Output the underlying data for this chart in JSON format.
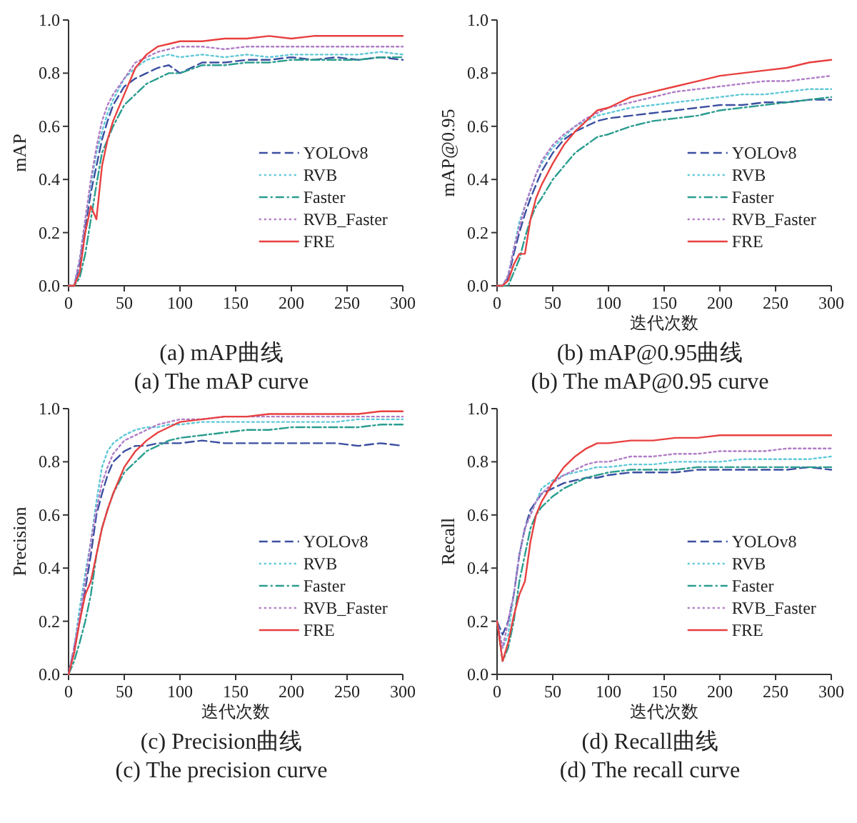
{
  "chart_data": [
    {
      "type": "line",
      "title": "(a) mAP曲线",
      "subtitle": "(a) The mAP curve",
      "ylabel": "mAP",
      "legend": "right",
      "grid": false,
      "x": [
        0,
        5,
        10,
        15,
        20,
        25,
        30,
        35,
        40,
        50,
        60,
        70,
        80,
        90,
        100,
        120,
        140,
        160,
        180,
        200,
        220,
        240,
        260,
        280,
        300
      ],
      "xlim": [
        0,
        300
      ],
      "xticks": [
        0,
        50,
        100,
        150,
        200,
        250,
        300
      ],
      "ylim": [
        0,
        1
      ],
      "yticks": [
        {
          "value": 0,
          "label": "0.0"
        },
        {
          "value": 0.2,
          "label": "0.2"
        },
        {
          "value": 0.4,
          "label": "0.4"
        },
        {
          "value": 0.6,
          "label": "0.6"
        },
        {
          "value": 0.8,
          "label": "0.8"
        },
        {
          "value": 1,
          "label": "1.0"
        }
      ],
      "series": [
        {
          "name": "YOLOv8",
          "color": "#3b4fa0",
          "line_style": "dashed",
          "values": [
            0,
            0,
            0.08,
            0.22,
            0.35,
            0.45,
            0.55,
            0.62,
            0.68,
            0.75,
            0.78,
            0.8,
            0.82,
            0.83,
            0.8,
            0.84,
            0.84,
            0.85,
            0.85,
            0.86,
            0.85,
            0.86,
            0.85,
            0.86,
            0.85
          ]
        },
        {
          "name": "RVB",
          "color": "#5fc8d8",
          "line_style": "dotted",
          "values": [
            0,
            0,
            0.1,
            0.25,
            0.38,
            0.5,
            0.58,
            0.65,
            0.7,
            0.78,
            0.82,
            0.85,
            0.86,
            0.87,
            0.86,
            0.87,
            0.86,
            0.87,
            0.86,
            0.87,
            0.87,
            0.87,
            0.87,
            0.88,
            0.87
          ]
        },
        {
          "name": "Faster",
          "color": "#2a9d8f",
          "line_style": "dashdot",
          "values": [
            0,
            0,
            0.03,
            0.12,
            0.25,
            0.38,
            0.5,
            0.55,
            0.6,
            0.68,
            0.72,
            0.76,
            0.78,
            0.8,
            0.8,
            0.83,
            0.83,
            0.84,
            0.84,
            0.85,
            0.85,
            0.85,
            0.85,
            0.86,
            0.86
          ]
        },
        {
          "name": "RVB_Faster",
          "color": "#b07cc6",
          "line_style": "dotted",
          "values": [
            0,
            0,
            0.1,
            0.25,
            0.4,
            0.52,
            0.62,
            0.68,
            0.72,
            0.78,
            0.84,
            0.86,
            0.88,
            0.89,
            0.9,
            0.9,
            0.89,
            0.9,
            0.9,
            0.9,
            0.9,
            0.9,
            0.9,
            0.9,
            0.9
          ]
        },
        {
          "name": "FRE",
          "color": "#e84040",
          "line_style": "solid",
          "values": [
            0,
            0,
            0.05,
            0.2,
            0.3,
            0.25,
            0.45,
            0.55,
            0.62,
            0.72,
            0.82,
            0.87,
            0.9,
            0.91,
            0.92,
            0.92,
            0.93,
            0.93,
            0.94,
            0.93,
            0.94,
            0.94,
            0.94,
            0.94,
            0.94
          ]
        }
      ]
    },
    {
      "type": "line",
      "title": "(b) mAP@0.95曲线",
      "subtitle": "(b) The mAP@0.95 curve",
      "xlabel": "迭代次数",
      "ylabel": "mAP@0.95",
      "legend": "right",
      "grid": false,
      "x": [
        0,
        5,
        10,
        15,
        20,
        25,
        30,
        35,
        40,
        50,
        60,
        70,
        80,
        90,
        100,
        120,
        140,
        160,
        180,
        200,
        220,
        240,
        260,
        280,
        300
      ],
      "xlim": [
        0,
        300
      ],
      "xticks": [
        0,
        50,
        100,
        150,
        200,
        250,
        300
      ],
      "ylim": [
        0,
        1
      ],
      "yticks": [
        {
          "value": 0,
          "label": "0.0"
        },
        {
          "value": 0.2,
          "label": "0.2"
        },
        {
          "value": 0.4,
          "label": "0.4"
        },
        {
          "value": 0.6,
          "label": "0.6"
        },
        {
          "value": 0.8,
          "label": "0.8"
        },
        {
          "value": 1,
          "label": "1.0"
        }
      ],
      "series": [
        {
          "name": "YOLOv8",
          "color": "#3b4fa0",
          "line_style": "dashed",
          "values": [
            0,
            0,
            0.03,
            0.12,
            0.2,
            0.27,
            0.33,
            0.38,
            0.43,
            0.5,
            0.55,
            0.58,
            0.6,
            0.62,
            0.63,
            0.64,
            0.65,
            0.66,
            0.67,
            0.68,
            0.68,
            0.69,
            0.69,
            0.7,
            0.7
          ]
        },
        {
          "name": "RVB",
          "color": "#5fc8d8",
          "line_style": "dotted",
          "values": [
            0,
            0,
            0.04,
            0.14,
            0.24,
            0.3,
            0.36,
            0.42,
            0.46,
            0.52,
            0.56,
            0.6,
            0.62,
            0.64,
            0.65,
            0.67,
            0.68,
            0.69,
            0.7,
            0.71,
            0.72,
            0.72,
            0.73,
            0.74,
            0.74
          ]
        },
        {
          "name": "Faster",
          "color": "#2a9d8f",
          "line_style": "dashdot",
          "values": [
            0,
            0,
            0,
            0.05,
            0.1,
            0.18,
            0.25,
            0.3,
            0.33,
            0.4,
            0.45,
            0.5,
            0.53,
            0.56,
            0.57,
            0.6,
            0.62,
            0.63,
            0.64,
            0.66,
            0.67,
            0.68,
            0.69,
            0.7,
            0.71
          ]
        },
        {
          "name": "RVB_Faster",
          "color": "#b07cc6",
          "line_style": "dotted",
          "values": [
            0,
            0,
            0.04,
            0.14,
            0.22,
            0.3,
            0.36,
            0.42,
            0.47,
            0.53,
            0.57,
            0.6,
            0.63,
            0.65,
            0.67,
            0.69,
            0.71,
            0.73,
            0.74,
            0.75,
            0.76,
            0.77,
            0.77,
            0.78,
            0.79
          ]
        },
        {
          "name": "FRE",
          "color": "#e84040",
          "line_style": "solid",
          "values": [
            0,
            0,
            0.02,
            0.08,
            0.12,
            0.12,
            0.25,
            0.33,
            0.38,
            0.46,
            0.53,
            0.58,
            0.62,
            0.66,
            0.67,
            0.71,
            0.73,
            0.75,
            0.77,
            0.79,
            0.8,
            0.81,
            0.82,
            0.84,
            0.85
          ]
        }
      ]
    },
    {
      "type": "line",
      "title": "(c) Precision曲线",
      "subtitle": "(c) The precision curve",
      "xlabel": "迭代次数",
      "ylabel": "Precision",
      "legend": "right",
      "grid": false,
      "x": [
        0,
        5,
        10,
        15,
        20,
        25,
        30,
        35,
        40,
        50,
        60,
        70,
        80,
        90,
        100,
        120,
        140,
        160,
        180,
        200,
        220,
        240,
        260,
        280,
        300
      ],
      "xlim": [
        0,
        300
      ],
      "xticks": [
        0,
        50,
        100,
        150,
        200,
        250,
        300
      ],
      "ylim": [
        0,
        1
      ],
      "yticks": [
        {
          "value": 0,
          "label": "0.0"
        },
        {
          "value": 0.2,
          "label": "0.2"
        },
        {
          "value": 0.4,
          "label": "0.4"
        },
        {
          "value": 0.6,
          "label": "0.6"
        },
        {
          "value": 0.8,
          "label": "0.8"
        },
        {
          "value": 1,
          "label": "1.0"
        }
      ],
      "series": [
        {
          "name": "YOLOv8",
          "color": "#3b4fa0",
          "line_style": "dashed",
          "values": [
            0,
            0.1,
            0.2,
            0.32,
            0.45,
            0.6,
            0.68,
            0.75,
            0.8,
            0.84,
            0.86,
            0.86,
            0.87,
            0.87,
            0.87,
            0.88,
            0.87,
            0.87,
            0.87,
            0.87,
            0.87,
            0.87,
            0.86,
            0.87,
            0.86
          ]
        },
        {
          "name": "RVB",
          "color": "#5fc8d8",
          "line_style": "dotted",
          "values": [
            0,
            0.1,
            0.25,
            0.38,
            0.5,
            0.65,
            0.78,
            0.84,
            0.87,
            0.9,
            0.92,
            0.93,
            0.93,
            0.94,
            0.94,
            0.95,
            0.95,
            0.95,
            0.95,
            0.95,
            0.95,
            0.95,
            0.96,
            0.96,
            0.96
          ]
        },
        {
          "name": "Faster",
          "color": "#2a9d8f",
          "line_style": "dashdot",
          "values": [
            0,
            0.05,
            0.12,
            0.2,
            0.3,
            0.45,
            0.55,
            0.62,
            0.68,
            0.76,
            0.8,
            0.84,
            0.86,
            0.88,
            0.89,
            0.9,
            0.91,
            0.92,
            0.92,
            0.93,
            0.93,
            0.93,
            0.93,
            0.94,
            0.94
          ]
        },
        {
          "name": "RVB_Faster",
          "color": "#b07cc6",
          "line_style": "dotted",
          "values": [
            0,
            0.1,
            0.22,
            0.35,
            0.5,
            0.62,
            0.72,
            0.78,
            0.83,
            0.88,
            0.9,
            0.92,
            0.94,
            0.95,
            0.96,
            0.96,
            0.97,
            0.97,
            0.97,
            0.97,
            0.97,
            0.97,
            0.97,
            0.97,
            0.97
          ]
        },
        {
          "name": "FRE",
          "color": "#e84040",
          "line_style": "solid",
          "values": [
            0,
            0.08,
            0.2,
            0.3,
            0.35,
            0.45,
            0.55,
            0.62,
            0.68,
            0.78,
            0.84,
            0.88,
            0.91,
            0.93,
            0.95,
            0.96,
            0.97,
            0.97,
            0.98,
            0.98,
            0.98,
            0.98,
            0.98,
            0.99,
            0.99
          ]
        }
      ]
    },
    {
      "type": "line",
      "title": "(d) Recall曲线",
      "subtitle": "(d) The recall curve",
      "xlabel": "迭代次数",
      "ylabel": "Recall",
      "legend": "right",
      "grid": false,
      "x": [
        0,
        5,
        10,
        15,
        20,
        25,
        30,
        35,
        40,
        50,
        60,
        70,
        80,
        90,
        100,
        120,
        140,
        160,
        180,
        200,
        220,
        240,
        260,
        280,
        300
      ],
      "xlim": [
        0,
        300
      ],
      "xticks": [
        0,
        50,
        100,
        150,
        200,
        250,
        300
      ],
      "ylim": [
        0,
        1
      ],
      "yticks": [
        {
          "value": 0,
          "label": "0.0"
        },
        {
          "value": 0.2,
          "label": "0.2"
        },
        {
          "value": 0.4,
          "label": "0.4"
        },
        {
          "value": 0.6,
          "label": "0.6"
        },
        {
          "value": 0.8,
          "label": "0.8"
        },
        {
          "value": 1,
          "label": "1.0"
        }
      ],
      "series": [
        {
          "name": "YOLOv8",
          "color": "#3b4fa0",
          "line_style": "dashed",
          "values": [
            0.2,
            0.15,
            0.2,
            0.3,
            0.45,
            0.55,
            0.62,
            0.65,
            0.68,
            0.7,
            0.72,
            0.73,
            0.74,
            0.74,
            0.75,
            0.76,
            0.76,
            0.76,
            0.77,
            0.77,
            0.77,
            0.77,
            0.77,
            0.78,
            0.77
          ]
        },
        {
          "name": "RVB",
          "color": "#5fc8d8",
          "line_style": "dotted",
          "values": [
            0.2,
            0.1,
            0.15,
            0.3,
            0.45,
            0.55,
            0.6,
            0.65,
            0.7,
            0.73,
            0.75,
            0.76,
            0.77,
            0.78,
            0.78,
            0.79,
            0.79,
            0.8,
            0.8,
            0.8,
            0.81,
            0.81,
            0.81,
            0.81,
            0.82
          ]
        },
        {
          "name": "Faster",
          "color": "#2a9d8f",
          "line_style": "dashdot",
          "values": [
            0.2,
            0.05,
            0.1,
            0.2,
            0.35,
            0.45,
            0.55,
            0.6,
            0.63,
            0.67,
            0.7,
            0.72,
            0.74,
            0.75,
            0.76,
            0.77,
            0.77,
            0.77,
            0.78,
            0.78,
            0.78,
            0.78,
            0.78,
            0.78,
            0.78
          ]
        },
        {
          "name": "RVB_Faster",
          "color": "#b07cc6",
          "line_style": "dotted",
          "values": [
            0.2,
            0.1,
            0.2,
            0.3,
            0.45,
            0.55,
            0.6,
            0.65,
            0.68,
            0.72,
            0.75,
            0.77,
            0.79,
            0.8,
            0.8,
            0.82,
            0.82,
            0.83,
            0.83,
            0.84,
            0.84,
            0.84,
            0.85,
            0.85,
            0.85
          ]
        },
        {
          "name": "FRE",
          "color": "#e84040",
          "line_style": "solid",
          "values": [
            0.2,
            0.05,
            0.12,
            0.22,
            0.3,
            0.35,
            0.5,
            0.6,
            0.65,
            0.72,
            0.78,
            0.82,
            0.85,
            0.87,
            0.87,
            0.88,
            0.88,
            0.89,
            0.89,
            0.9,
            0.9,
            0.9,
            0.9,
            0.9,
            0.9
          ]
        }
      ]
    }
  ]
}
